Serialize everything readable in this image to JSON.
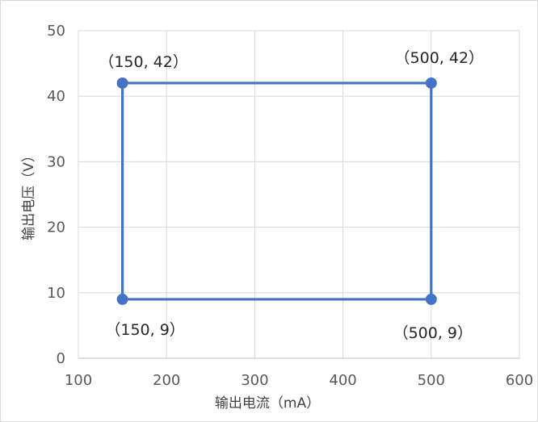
{
  "chart_data": {
    "type": "scatter",
    "title": "",
    "xlabel": "输出电流（mA）",
    "ylabel": "输出电压（V）",
    "xlim": [
      100,
      600
    ],
    "ylim": [
      0,
      50
    ],
    "xticks": [
      100,
      200,
      300,
      400,
      500,
      600
    ],
    "yticks": [
      0,
      10,
      20,
      30,
      40,
      50
    ],
    "grid": true,
    "legend": "none",
    "series": [
      {
        "color": "#4472C4",
        "closed": true,
        "points": [
          {
            "x": 150,
            "y": 42,
            "label": "（150, 42）"
          },
          {
            "x": 500,
            "y": 42,
            "label": "（500, 42）"
          },
          {
            "x": 500,
            "y": 9,
            "label": "（500, 9）"
          },
          {
            "x": 150,
            "y": 9,
            "label": "（150, 9）"
          }
        ]
      }
    ]
  }
}
